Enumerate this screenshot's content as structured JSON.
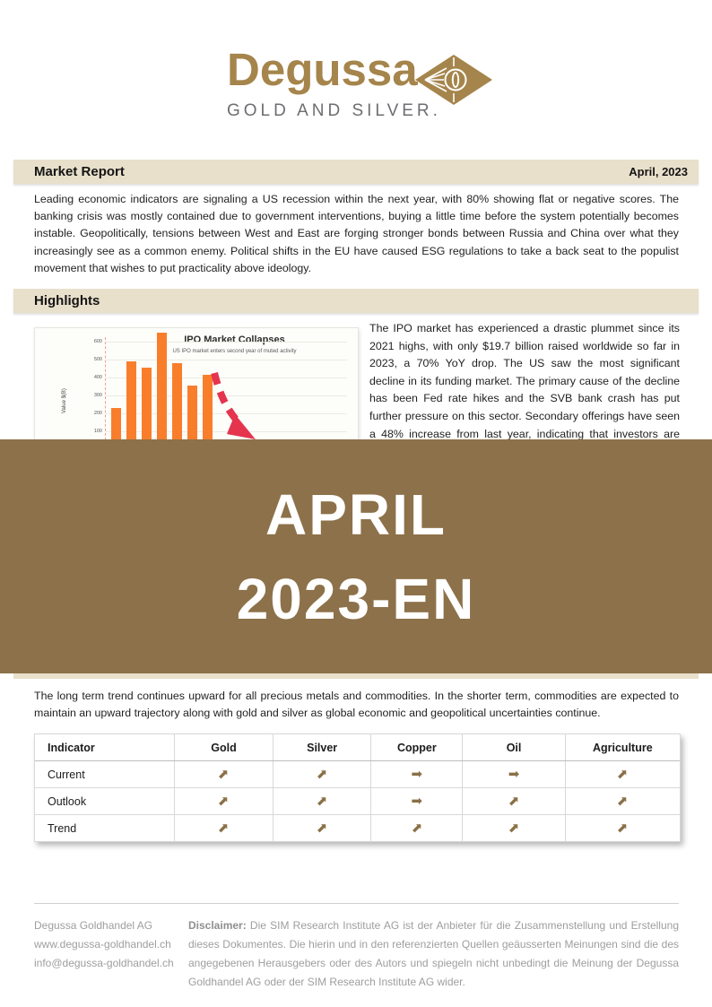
{
  "logo": {
    "brand": "Degussa",
    "tagline": "GOLD AND SILVER.",
    "gold_color": "#a5854b",
    "gray_color": "#6d6e71"
  },
  "report_header": {
    "title": "Market Report",
    "date": "April, 2023"
  },
  "intro_paragraph": "Leading economic indicators are signaling a US recession within the next year, with 80% showing flat or negative scores. The banking crisis was mostly contained due to government interventions, buying a little time before the system potentially becomes instable. Geopolitically, tensions between West and East are forging stronger bonds between Russia and China over what they increasingly see as a common enemy.  Political shifts in the EU have caused ESG regulations to take a back seat to the populist movement that wishes to put practicality above ideology.",
  "highlights": {
    "title": "Highlights",
    "ipo_paragraph": "The IPO market has experienced a drastic plummet since its 2021 highs, with only $19.7 billion raised worldwide so far in 2023, a 70% YoY drop. The US saw the most significant decline in its funding market. The primary cause of the decline has been Fed rate hikes and the SVB bank crash has put further pressure on this sector.  Secondary offerings have seen a 48% increase from last year, indicating that investors are fleeing the sector"
  },
  "chart_data": {
    "type": "bar",
    "title": "IPO Market Collapses",
    "subtitle": "US IPO market enters second year of muted activity",
    "ylabel": "Value $(B)",
    "yticks": [
      100,
      200,
      300,
      400,
      500,
      600
    ],
    "values": [
      230,
      490,
      455,
      650,
      480,
      355,
      415
    ],
    "bar_color": "#f97e2b",
    "annotation": "dashed red arrow pointing down-right",
    "annotation_color": "#e5344e",
    "note": "lower portion of chart hidden by overlay banner"
  },
  "overlay": {
    "line1": "APRIL",
    "line2": "2023-EN",
    "background": "#8d714a"
  },
  "outlook_paragraph": "The long term trend continues upward for all precious metals and commodities.  In the shorter term, commodities are expected to maintain an upward trajectory along with gold and silver as global economic and geopolitical uncertainties continue.",
  "indicator_table": {
    "headers": [
      "Indicator",
      "Gold",
      "Silver",
      "Copper",
      "Oil",
      "Agriculture"
    ],
    "rows": [
      {
        "label": "Current",
        "values": [
          "up",
          "up",
          "flat",
          "flat",
          "up"
        ]
      },
      {
        "label": "Outlook",
        "values": [
          "up",
          "up",
          "flat",
          "up",
          "up"
        ]
      },
      {
        "label": "Trend",
        "values": [
          "up",
          "up",
          "up",
          "up",
          "up"
        ]
      }
    ],
    "arrow_color": "#8a7048"
  },
  "footer": {
    "company": "Degussa Goldhandel AG",
    "website": "www.degussa-goldhandel.ch",
    "email": "info@degussa-goldhandel.ch",
    "disclaimer_label": "Disclaimer:",
    "disclaimer_text": " Die SIM Research Institute AG ist der Anbieter für die Zusammenstellung und Erstellung dieses Dokumentes.  Die hierin und in den referenzierten Quellen geäusserten Meinungen sind die des angegebenen Herausgebers oder des Autors und spiegeln nicht unbedingt die Meinung der Degussa Goldhandel AG oder der SIM Research Institute AG wider."
  }
}
